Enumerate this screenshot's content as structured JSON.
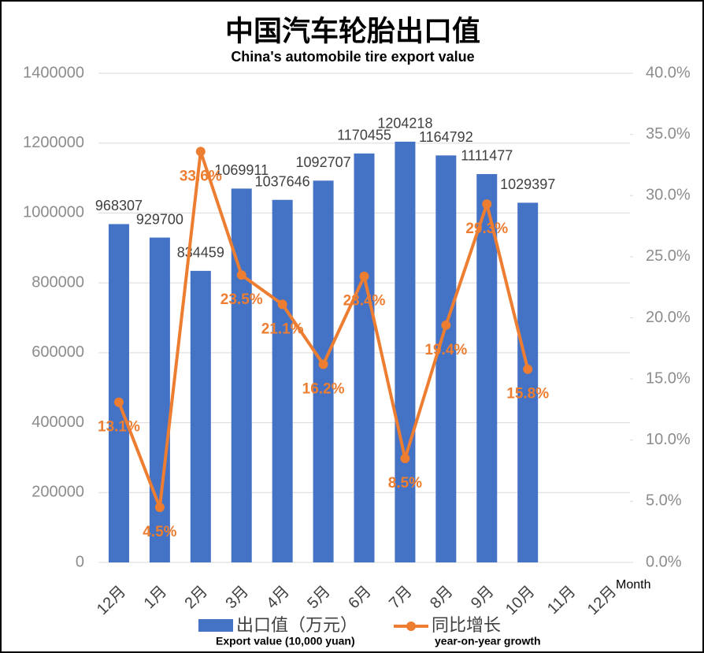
{
  "chart_data": {
    "type": "bar_line",
    "title": "中国汽车轮胎出口值",
    "subtitle": "China's automobile tire export value",
    "x_label": "Month",
    "categories": [
      "12月",
      "1月",
      "2月",
      "3月",
      "4月",
      "5月",
      "6月",
      "7月",
      "8月",
      "9月",
      "10月",
      "11月",
      "12月"
    ],
    "series": [
      {
        "name": "出口值（万元）",
        "name_en": "Export value (10,000 yuan)",
        "type": "bar",
        "color": "#4472c4",
        "values": [
          968307,
          929700,
          834459,
          1069911,
          1037646,
          1092707,
          1170455,
          1204218,
          1164792,
          1111477,
          1029397,
          null,
          null
        ]
      },
      {
        "name": "同比增长",
        "name_en": "year-on-year growth",
        "type": "line",
        "axis": "y2",
        "color": "#ed7d31",
        "values": [
          13.1,
          4.5,
          33.6,
          23.5,
          21.1,
          16.2,
          23.4,
          8.5,
          19.4,
          29.3,
          15.8,
          null,
          null
        ],
        "value_labels": [
          "13.1%",
          "4.5%",
          "33.6%",
          "23.5%",
          "21.1%",
          "16.2%",
          "23.4%",
          "8.5%",
          "19.4%",
          "29.3%",
          "15.8%",
          null,
          null
        ]
      }
    ],
    "ylim": [
      0,
      1400000
    ],
    "yticks": [
      0,
      200000,
      400000,
      600000,
      800000,
      1000000,
      1200000,
      1400000
    ],
    "y2lim": [
      0,
      40
    ],
    "y2ticks": [
      {
        "value": 0,
        "label": "0.0%"
      },
      {
        "value": 5,
        "label": "5.0%"
      },
      {
        "value": 10,
        "label": "10.0%"
      },
      {
        "value": 15,
        "label": "15.0%"
      },
      {
        "value": 20,
        "label": "20.0%"
      },
      {
        "value": 25,
        "label": "25.0%"
      },
      {
        "value": 30,
        "label": "30.0%"
      },
      {
        "value": 35,
        "label": "35.0%"
      },
      {
        "value": 40,
        "label": "40.0%"
      }
    ],
    "grid": true
  }
}
